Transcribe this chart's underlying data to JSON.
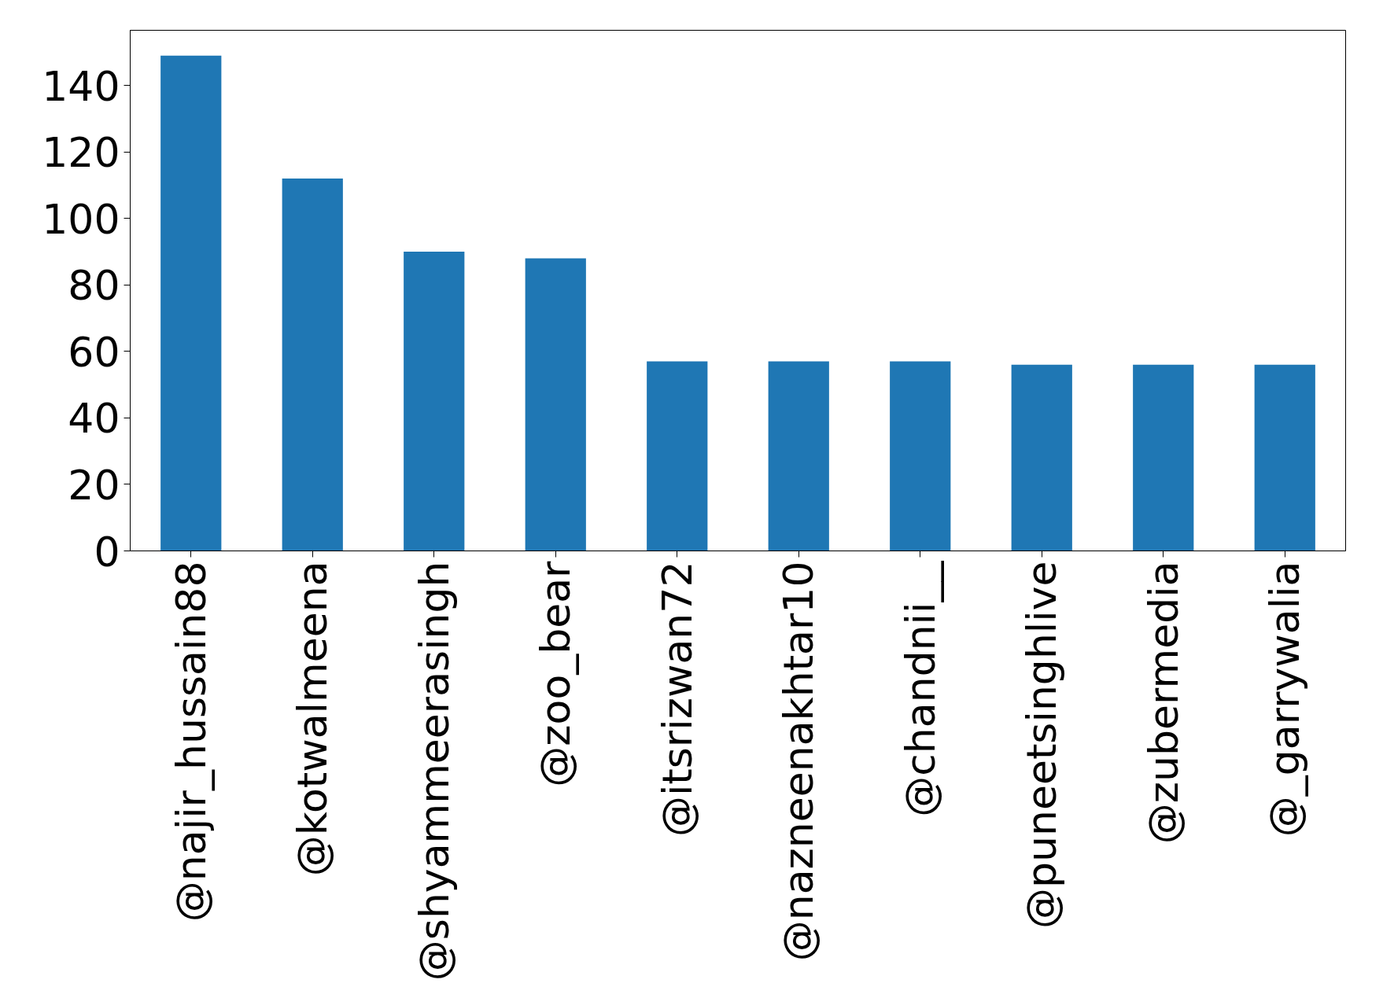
{
  "chart_data": {
    "type": "bar",
    "categories": [
      "@najir_hussain88",
      "@kotwalmeena",
      "@shyammeerasingh",
      "@zoo_bear",
      "@itsrizwan72",
      "@nazneenakhtar10",
      "@chandnii__",
      "@puneetsinghlive",
      "@zubermedia",
      "@_garrywalia"
    ],
    "values": [
      149,
      112,
      90,
      88,
      57,
      57,
      57,
      56,
      56,
      56
    ],
    "color": "#1f77b4",
    "ylim": [
      0,
      156.6
    ],
    "yticks": [
      0,
      20,
      40,
      60,
      80,
      100,
      120,
      140
    ],
    "grid": false
  }
}
